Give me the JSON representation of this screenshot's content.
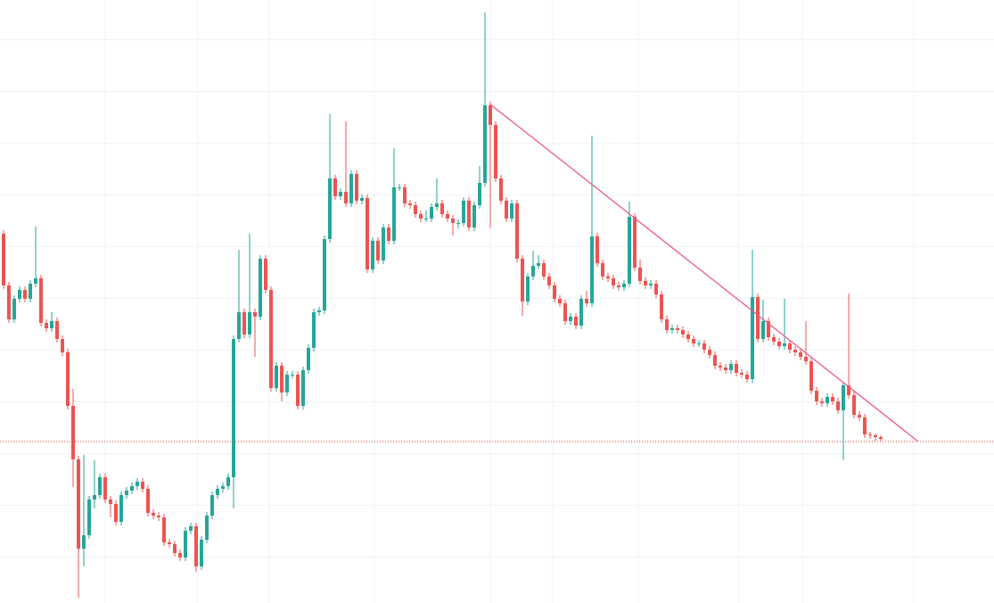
{
  "chart_data": {
    "type": "candlestick",
    "open": [
      414,
      356,
      318,
      341,
      351,
      341,
      358,
      364,
      314,
      308,
      316,
      296,
      281,
      221,
      161,
      61,
      76,
      116,
      121,
      141,
      116,
      111,
      91,
      121,
      126,
      131,
      136,
      128,
      101,
      98,
      96,
      68,
      66,
      56,
      51,
      81,
      86,
      41,
      71,
      98,
      121,
      128,
      131,
      141,
      296,
      326,
      301,
      326,
      321,
      386,
      351,
      241,
      266,
      236,
      256,
      256,
      221,
      261,
      286,
      326,
      328,
      408,
      476,
      456,
      461,
      448,
      481,
      451,
      454,
      374,
      406,
      384,
      421,
      406,
      466,
      466,
      448,
      446,
      436,
      431,
      431,
      444,
      448,
      436,
      431,
      426,
      426,
      451,
      421,
      446,
      471,
      558,
      536,
      476,
      451,
      431,
      448,
      386,
      338,
      366,
      378,
      381,
      366,
      356,
      341,
      336,
      316,
      321,
      311,
      341,
      336,
      411,
      381,
      366,
      364,
      356,
      354,
      358,
      433,
      376,
      361,
      356,
      358,
      346,
      318,
      306,
      308,
      306,
      301,
      296,
      291,
      291,
      284,
      278,
      266,
      264,
      261,
      268,
      258,
      256,
      251,
      343,
      296,
      316,
      298,
      293,
      288,
      291,
      284,
      281,
      276,
      271,
      238,
      226,
      224,
      231,
      226,
      216,
      244,
      233,
      211,
      208,
      189,
      188,
      186
    ],
    "high": [
      418,
      360,
      345,
      355,
      355,
      362,
      422,
      368,
      318,
      326,
      320,
      300,
      285,
      240,
      165,
      166,
      120,
      160,
      145,
      145,
      120,
      115,
      125,
      130,
      135,
      140,
      140,
      132,
      105,
      102,
      100,
      72,
      70,
      60,
      85,
      90,
      90,
      75,
      102,
      125,
      132,
      135,
      145,
      300,
      396,
      330,
      414,
      330,
      390,
      390,
      355,
      270,
      270,
      260,
      260,
      260,
      265,
      290,
      330,
      332,
      412,
      548,
      480,
      465,
      540,
      485,
      485,
      458,
      458,
      410,
      410,
      425,
      425,
      510,
      470,
      470,
      452,
      450,
      440,
      440,
      448,
      476,
      452,
      440,
      435,
      430,
      455,
      455,
      450,
      490,
      662,
      562,
      540,
      480,
      455,
      452,
      452,
      390,
      370,
      395,
      390,
      385,
      370,
      360,
      345,
      340,
      325,
      325,
      345,
      350,
      524,
      415,
      385,
      370,
      368,
      360,
      362,
      450,
      437,
      385,
      365,
      362,
      362,
      350,
      322,
      312,
      312,
      310,
      305,
      300,
      295,
      295,
      288,
      282,
      270,
      268,
      272,
      272,
      262,
      260,
      396,
      347,
      340,
      320,
      302,
      297,
      341,
      295,
      288,
      285,
      316,
      275,
      242,
      230,
      235,
      235,
      230,
      248,
      347,
      237,
      215,
      212,
      192,
      190,
      188
    ],
    "low": [
      352,
      314,
      314,
      337,
      337,
      337,
      354,
      310,
      304,
      304,
      292,
      277,
      217,
      130,
      6,
      41,
      72,
      106,
      117,
      112,
      96,
      87,
      87,
      117,
      122,
      127,
      124,
      97,
      94,
      92,
      64,
      62,
      52,
      47,
      47,
      77,
      35,
      37,
      67,
      94,
      117,
      124,
      127,
      106,
      292,
      297,
      297,
      276,
      317,
      347,
      237,
      237,
      226,
      232,
      252,
      217,
      217,
      257,
      282,
      322,
      324,
      404,
      452,
      452,
      444,
      444,
      447,
      447,
      370,
      370,
      380,
      380,
      402,
      402,
      462,
      444,
      442,
      432,
      427,
      427,
      427,
      440,
      432,
      427,
      412,
      420,
      422,
      417,
      417,
      442,
      467,
      420,
      472,
      447,
      427,
      427,
      382,
      322,
      334,
      362,
      374,
      362,
      352,
      337,
      332,
      312,
      312,
      307,
      307,
      332,
      332,
      377,
      362,
      360,
      352,
      350,
      350,
      354,
      372,
      357,
      352,
      352,
      342,
      314,
      302,
      302,
      302,
      297,
      292,
      287,
      287,
      280,
      274,
      262,
      260,
      257,
      257,
      254,
      252,
      247,
      247,
      292,
      292,
      294,
      289,
      284,
      284,
      280,
      277,
      272,
      267,
      234,
      222,
      220,
      220,
      222,
      212,
      160,
      229,
      207,
      204,
      185,
      184,
      182,
      182
    ],
    "close": [
      356,
      318,
      341,
      351,
      341,
      358,
      364,
      314,
      308,
      316,
      296,
      281,
      221,
      161,
      61,
      76,
      116,
      121,
      141,
      116,
      111,
      91,
      121,
      126,
      131,
      136,
      128,
      101,
      98,
      96,
      68,
      66,
      56,
      51,
      81,
      86,
      41,
      71,
      98,
      121,
      128,
      131,
      141,
      296,
      326,
      301,
      326,
      321,
      386,
      351,
      241,
      266,
      236,
      256,
      256,
      221,
      261,
      286,
      326,
      328,
      408,
      476,
      456,
      461,
      448,
      481,
      451,
      454,
      374,
      406,
      384,
      421,
      406,
      466,
      466,
      448,
      446,
      436,
      431,
      431,
      444,
      448,
      436,
      431,
      426,
      426,
      451,
      421,
      446,
      471,
      558,
      536,
      476,
      451,
      431,
      448,
      386,
      338,
      366,
      378,
      381,
      366,
      356,
      341,
      336,
      316,
      321,
      311,
      341,
      336,
      411,
      381,
      366,
      364,
      356,
      354,
      358,
      433,
      376,
      361,
      356,
      358,
      346,
      318,
      306,
      308,
      306,
      301,
      296,
      291,
      291,
      284,
      278,
      266,
      264,
      261,
      268,
      258,
      256,
      251,
      343,
      296,
      316,
      298,
      293,
      288,
      291,
      284,
      281,
      276,
      271,
      238,
      226,
      224,
      231,
      226,
      216,
      244,
      233,
      211,
      208,
      189,
      188,
      186,
      184
    ],
    "up_color": "#26a69a",
    "down_color": "#ef5350",
    "ylim": [
      0,
      676
    ]
  }
}
